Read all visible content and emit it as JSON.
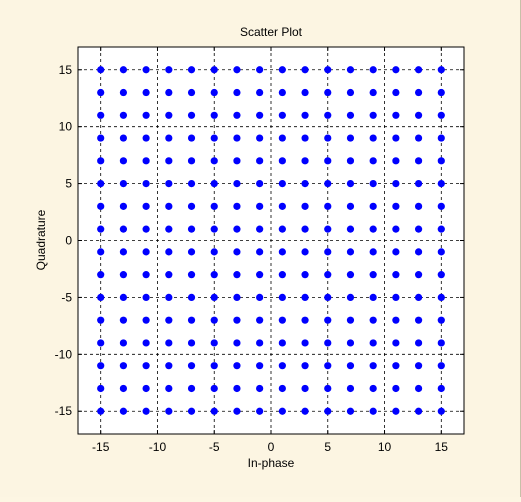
{
  "figure": {
    "background_color": "#fcf5e2",
    "axes_background_color": "#ffffff",
    "marker_color": "#0000ff"
  },
  "chart_data": {
    "type": "scatter",
    "title": "Scatter Plot",
    "xlabel": "In-phase",
    "ylabel": "Quadrature",
    "xlim": [
      -17,
      17
    ],
    "ylim": [
      -17,
      17
    ],
    "xticks": [
      -15,
      -10,
      -5,
      0,
      5,
      10,
      15
    ],
    "yticks": [
      -15,
      -10,
      -5,
      0,
      5,
      10,
      15
    ],
    "xtick_labels": [
      "-15",
      "-10",
      "-5",
      "0",
      "5",
      "10",
      "15"
    ],
    "ytick_labels": [
      "-15",
      "-10",
      "-5",
      "0",
      "5",
      "10",
      "15"
    ],
    "grid": true,
    "grid_style": "dashed",
    "marker": "filled-circle",
    "series": [
      {
        "constellation": "256-QAM",
        "x_levels": [
          -15,
          -13,
          -11,
          -9,
          -7,
          -5,
          -3,
          -1,
          1,
          3,
          5,
          7,
          9,
          11,
          13,
          15
        ],
        "y_levels": [
          -15,
          -13,
          -11,
          -9,
          -7,
          -5,
          -3,
          -1,
          1,
          3,
          5,
          7,
          9,
          11,
          13,
          15
        ],
        "point_count": 256
      }
    ]
  }
}
